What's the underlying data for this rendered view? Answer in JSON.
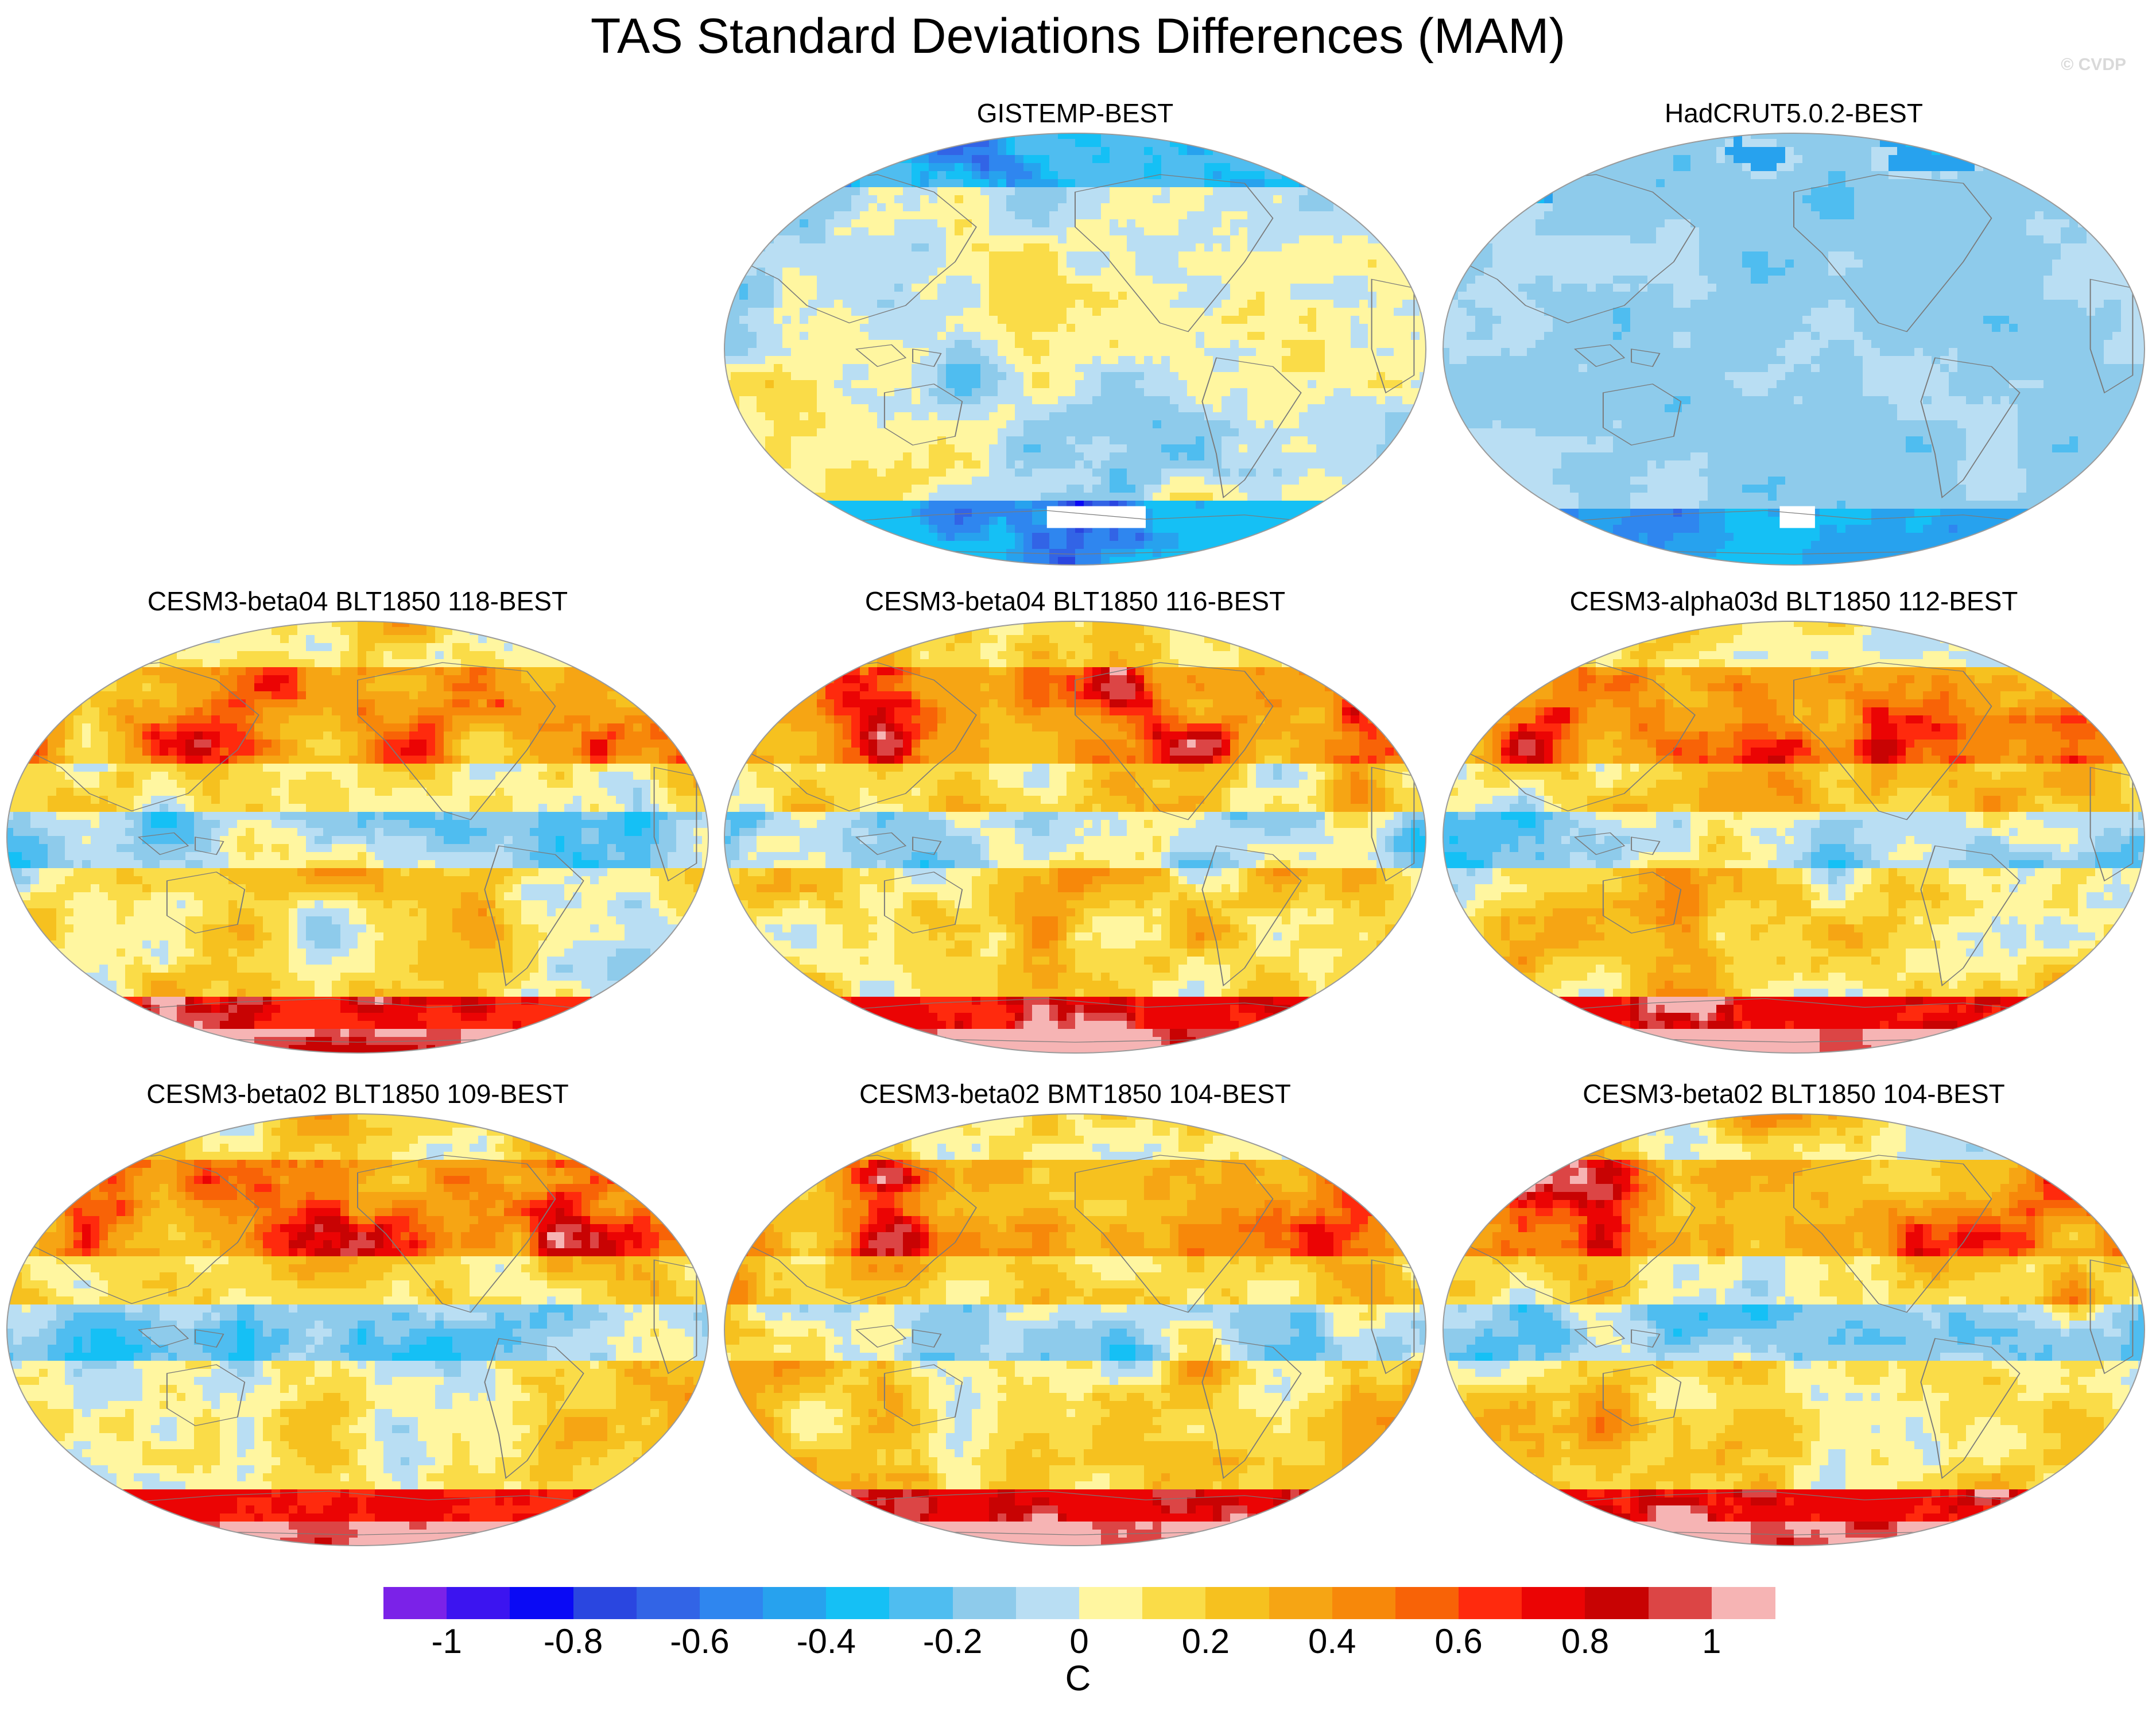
{
  "figure": {
    "title": "TAS Standard Deviations Differences (MAM)",
    "watermark": "© CVDP"
  },
  "panels": [
    {
      "id": "gistemp",
      "label": "GISTEMP-BEST",
      "bias": 0.0,
      "land_pattern": "mixed",
      "mask": "antarctic"
    },
    {
      "id": "hadcrut",
      "label": "HadCRUT5.0.2-BEST",
      "bias": -0.15,
      "land_pattern": "cool",
      "mask": "antarctic"
    },
    {
      "id": "b04-118",
      "label": "CESM3-beta04 BLT1850 118-BEST",
      "bias": 0.25,
      "land_pattern": "warm",
      "mask": "none"
    },
    {
      "id": "b04-116",
      "label": "CESM3-beta04 BLT1850 116-BEST",
      "bias": 0.3,
      "land_pattern": "warm",
      "mask": "none"
    },
    {
      "id": "a03d-112",
      "label": "CESM3-alpha03d BLT1850 112-BEST",
      "bias": 0.32,
      "land_pattern": "warm",
      "mask": "none"
    },
    {
      "id": "b02-109",
      "label": "CESM3-beta02 BLT1850 109-BEST",
      "bias": 0.3,
      "land_pattern": "warm",
      "mask": "none"
    },
    {
      "id": "b02-bmt104",
      "label": "CESM3-beta02 BMT1850 104-BEST",
      "bias": 0.35,
      "land_pattern": "warm",
      "mask": "none"
    },
    {
      "id": "b02-blt104",
      "label": "CESM3-beta02 BLT1850 104-BEST",
      "bias": 0.32,
      "land_pattern": "warm",
      "mask": "none"
    }
  ],
  "colorbar": {
    "units": "C",
    "levels": [
      -1.1,
      -1.0,
      -0.9,
      -0.8,
      -0.7,
      -0.6,
      -0.5,
      -0.4,
      -0.3,
      -0.2,
      -0.1,
      0,
      0.1,
      0.2,
      0.3,
      0.4,
      0.5,
      0.6,
      0.7,
      0.8,
      0.9,
      1.0,
      1.1
    ],
    "colors": [
      "#7b22e8",
      "#3c14f0",
      "#0a0af5",
      "#2a46e0",
      "#3264e6",
      "#2f86ef",
      "#27a2ee",
      "#15c0f5",
      "#4fbdf0",
      "#8ecbeb",
      "#b9def3",
      "#fff6a0",
      "#fadc48",
      "#f6c11f",
      "#f6a514",
      "#f7880a",
      "#f86307",
      "#ff2a0d",
      "#eb0404",
      "#c80303",
      "#dc4545",
      "#f6b4b4"
    ],
    "tick_labels": [
      {
        "value": -1,
        "text": "-1"
      },
      {
        "value": -0.8,
        "text": "-0.8"
      },
      {
        "value": -0.6,
        "text": "-0.6"
      },
      {
        "value": -0.4,
        "text": "-0.4"
      },
      {
        "value": -0.2,
        "text": "-0.2"
      },
      {
        "value": 0,
        "text": "0"
      },
      {
        "value": 0.2,
        "text": "0.2"
      },
      {
        "value": 0.4,
        "text": "0.4"
      },
      {
        "value": 0.6,
        "text": "0.6"
      },
      {
        "value": 0.8,
        "text": "0.8"
      },
      {
        "value": 1,
        "text": "1"
      }
    ]
  }
}
